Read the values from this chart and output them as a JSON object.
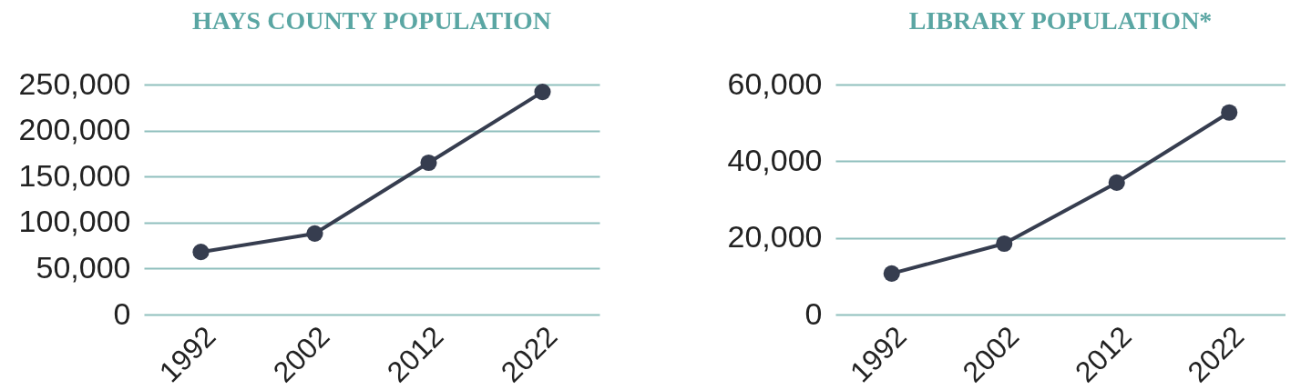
{
  "chart_data": [
    {
      "type": "line",
      "title": "HAYS COUNTY POPULATION",
      "categories": [
        "1992",
        "2002",
        "2012",
        "2022"
      ],
      "series": [
        {
          "color": "#363d4f",
          "values": [
            68000,
            88000,
            165000,
            242000
          ]
        }
      ],
      "ylim": [
        0,
        250000
      ],
      "yticks": [
        0,
        {
          "value": 50000,
          "label": "50,000"
        },
        {
          "value": 100000,
          "label": "100,000"
        },
        {
          "value": 150000,
          "label": "150,000"
        },
        {
          "value": 200000,
          "label": "200,000"
        },
        {
          "value": 250000,
          "label": "250,000"
        }
      ],
      "grid": "y",
      "marker": "circle",
      "line_style": "solid",
      "legend": false
    },
    {
      "type": "line",
      "title": "LIBRARY POPULATION*",
      "categories": [
        "1992",
        "2002",
        "2012",
        "2022"
      ],
      "series": [
        {
          "color": "#363d4f",
          "values": [
            10700,
            18500,
            34400,
            52700
          ]
        }
      ],
      "ylim": [
        0,
        60000
      ],
      "yticks": [
        0,
        {
          "value": 20000,
          "label": "20,000"
        },
        {
          "value": 40000,
          "label": "40,000"
        },
        {
          "value": 60000,
          "label": "60,000"
        }
      ],
      "grid": "y",
      "marker": "circle",
      "line_style": "solid",
      "legend": false
    }
  ]
}
